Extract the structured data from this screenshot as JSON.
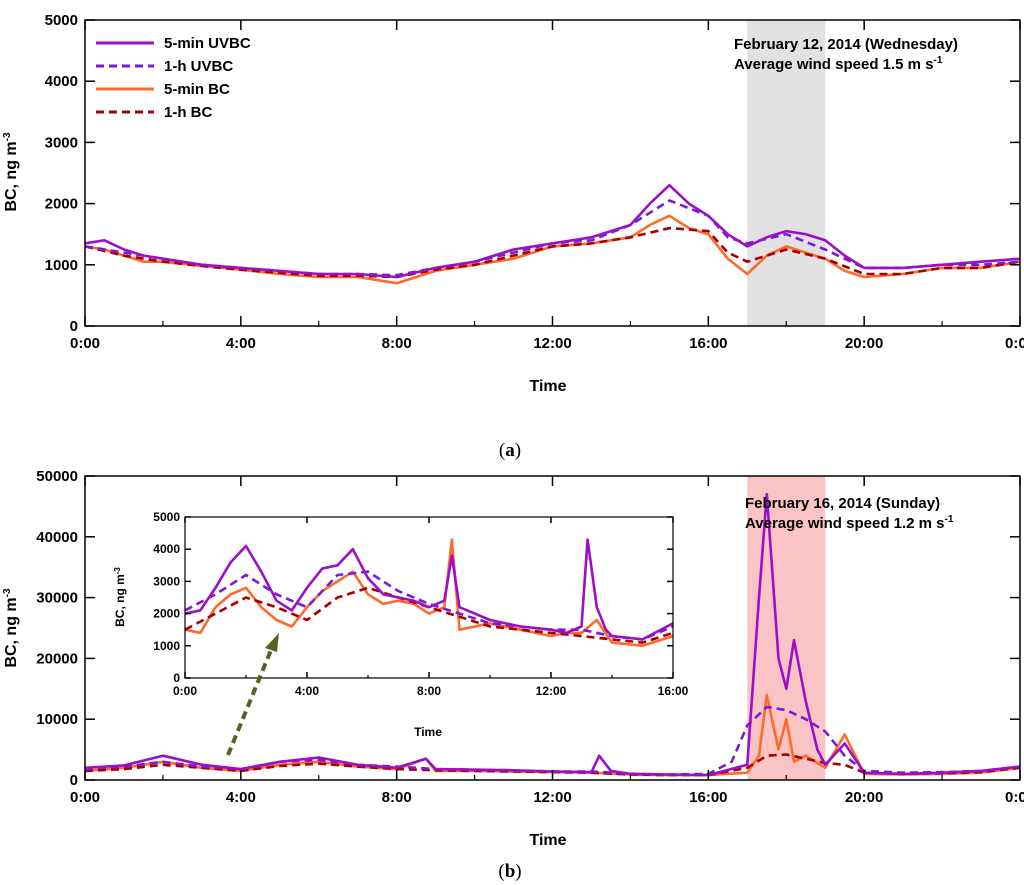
{
  "colors": {
    "uvbc_5min": "#9a10c8",
    "uvbc_1h": "#7a1ad6",
    "bc_5min": "#ff6a2a",
    "bc_1h": "#a80000",
    "highlight_a": "#e2e2e2",
    "highlight_b": "#fbc4c4",
    "arrow": "#5a5f20"
  },
  "legend": [
    "5-min UVBC",
    "1-h UVBC",
    "5-min BC",
    "1-h BC"
  ],
  "chart_data": [
    {
      "panel_label_text": "a",
      "type": "line",
      "xlabel": "Time",
      "ylabel": "BC, ng m",
      "ylabel_sup": "-3",
      "xlim_hours": [
        0,
        24
      ],
      "ylim": [
        0,
        5000
      ],
      "xticks": [
        "0:00",
        "4:00",
        "8:00",
        "12:00",
        "16:00",
        "20:00",
        "0:00"
      ],
      "yticks": [
        "0",
        "1000",
        "2000",
        "3000",
        "4000",
        "5000"
      ],
      "annotation_line1": "February 12, 2014 (Wednesday)",
      "annotation_line2": "Average wind speed 1.5 m s",
      "annotation_sup": "-1",
      "shaded_hours": [
        17,
        19
      ],
      "legend_position": "top-left",
      "series": [
        {
          "name": "5-min UVBC",
          "x": [
            0,
            0.5,
            1,
            1.5,
            2,
            3,
            4,
            5,
            6,
            7,
            8,
            9,
            10,
            11,
            12,
            13,
            14,
            14.5,
            15,
            15.5,
            16,
            16.5,
            17,
            17.5,
            18,
            18.5,
            19,
            19.5,
            20,
            21,
            22,
            23,
            24
          ],
          "y": [
            1350,
            1400,
            1250,
            1150,
            1100,
            1000,
            950,
            900,
            850,
            850,
            800,
            950,
            1050,
            1250,
            1350,
            1450,
            1650,
            2000,
            2300,
            2000,
            1800,
            1500,
            1300,
            1450,
            1550,
            1500,
            1400,
            1150,
            950,
            950,
            1000,
            1050,
            1100
          ]
        },
        {
          "name": "1-h UVBC",
          "x": [
            0,
            1,
            2,
            3,
            4,
            5,
            6,
            7,
            8,
            9,
            10,
            11,
            12,
            13,
            14,
            15,
            16,
            16.5,
            17,
            18,
            19,
            20,
            21,
            22,
            23,
            24
          ],
          "y": [
            1300,
            1200,
            1100,
            1000,
            950,
            900,
            850,
            850,
            830,
            950,
            1050,
            1200,
            1350,
            1400,
            1650,
            2050,
            1800,
            1450,
            1350,
            1500,
            1250,
            950,
            950,
            1000,
            1000,
            1050
          ]
        },
        {
          "name": "5-min BC",
          "x": [
            0,
            0.5,
            1,
            1.5,
            2,
            3,
            4,
            5,
            6,
            7,
            8,
            9,
            10,
            11,
            12,
            13,
            14,
            14.5,
            15,
            15.5,
            16,
            16.5,
            17,
            17.5,
            18,
            18.5,
            19,
            19.5,
            20,
            21,
            22,
            23,
            24
          ],
          "y": [
            1300,
            1250,
            1150,
            1050,
            1050,
            980,
            920,
            850,
            800,
            800,
            700,
            900,
            1000,
            1100,
            1300,
            1350,
            1450,
            1650,
            1800,
            1600,
            1500,
            1100,
            850,
            1150,
            1300,
            1200,
            1100,
            900,
            800,
            850,
            950,
            950,
            1050
          ]
        },
        {
          "name": "1-h BC",
          "x": [
            0,
            1,
            2,
            3,
            4,
            5,
            6,
            7,
            8,
            9,
            10,
            11,
            12,
            13,
            14,
            15,
            16,
            16.5,
            17,
            18,
            19,
            20,
            21,
            22,
            23,
            24
          ],
          "y": [
            1300,
            1150,
            1050,
            980,
            920,
            870,
            820,
            820,
            800,
            920,
            1000,
            1150,
            1300,
            1350,
            1450,
            1600,
            1550,
            1200,
            1050,
            1250,
            1100,
            850,
            850,
            950,
            950,
            1050
          ]
        }
      ]
    },
    {
      "panel_label_text": "b",
      "type": "line",
      "xlabel": "Time",
      "ylabel": "BC, ng m",
      "ylabel_sup": "-3",
      "xlim_hours": [
        0,
        24
      ],
      "ylim": [
        0,
        50000
      ],
      "xticks": [
        "0:00",
        "4:00",
        "8:00",
        "12:00",
        "16:00",
        "20:00",
        "0:00"
      ],
      "yticks": [
        "0",
        "10000",
        "20000",
        "30000",
        "40000",
        "50000"
      ],
      "annotation_line1": "February 16, 2014 (Sunday)",
      "annotation_line2": "Average wind speed 1.2 m s",
      "annotation_sup": "-1",
      "shaded_hours": [
        17,
        19
      ],
      "series": [
        {
          "name": "5-min UVBC",
          "x": [
            0,
            1,
            2,
            3,
            4,
            5,
            6,
            7,
            8,
            8.75,
            9,
            10,
            11,
            12,
            13,
            13.2,
            13.5,
            14,
            15,
            16,
            17,
            17.3,
            17.5,
            17.8,
            18,
            18.2,
            18.5,
            18.8,
            19,
            19.5,
            20,
            21,
            22,
            23,
            24
          ],
          "y": [
            2000,
            2400,
            4000,
            2500,
            1800,
            3000,
            3700,
            2500,
            2000,
            3500,
            1800,
            1700,
            1600,
            1400,
            1300,
            4000,
            1500,
            1000,
            900,
            800,
            2500,
            30000,
            47000,
            20000,
            15000,
            23000,
            13000,
            5000,
            2500,
            6000,
            1200,
            1000,
            1200,
            1500,
            2200
          ]
        },
        {
          "name": "1-h UVBC",
          "x": [
            0,
            1,
            2,
            3,
            4,
            5,
            6,
            7,
            8,
            9,
            10,
            11,
            12,
            13,
            14,
            15,
            16,
            16.6,
            17,
            17.5,
            18,
            18.5,
            19,
            19.5,
            20,
            21,
            22,
            23,
            24
          ],
          "y": [
            1800,
            2200,
            3000,
            2200,
            1800,
            3000,
            3300,
            2500,
            2200,
            1800,
            1700,
            1600,
            1400,
            1400,
            1000,
            900,
            1000,
            3000,
            9000,
            12000,
            11500,
            10000,
            8000,
            4000,
            1500,
            1200,
            1300,
            1500,
            2200
          ]
        },
        {
          "name": "5-min BC",
          "x": [
            0,
            1,
            2,
            3,
            4,
            5,
            6,
            7,
            8,
            8.75,
            9,
            10,
            11,
            12,
            13,
            14,
            15,
            16,
            17,
            17.3,
            17.5,
            17.8,
            18,
            18.2,
            18.5,
            19,
            19.5,
            20,
            21,
            22,
            23,
            24
          ],
          "y": [
            1500,
            2000,
            3000,
            2000,
            1500,
            2500,
            3000,
            2200,
            1800,
            3500,
            1500,
            1500,
            1400,
            1300,
            1200,
            900,
            800,
            800,
            1200,
            4000,
            14000,
            5000,
            10000,
            3000,
            4000,
            2000,
            7500,
            1000,
            900,
            1000,
            1200,
            2000
          ]
        },
        {
          "name": "1-h BC",
          "x": [
            0,
            1,
            2,
            3,
            4,
            5,
            6,
            7,
            8,
            9,
            10,
            11,
            12,
            13,
            14,
            15,
            16,
            17,
            17.5,
            18,
            18.5,
            19,
            19.5,
            20,
            21,
            22,
            23,
            24
          ],
          "y": [
            1500,
            1800,
            2500,
            2000,
            1500,
            2300,
            2700,
            2200,
            1800,
            1600,
            1500,
            1400,
            1300,
            1200,
            900,
            800,
            800,
            2000,
            4000,
            4200,
            3500,
            2800,
            2500,
            1200,
            1000,
            1100,
            1300,
            2000
          ]
        }
      ]
    },
    {
      "panel_label_text": "b-inset",
      "type": "line",
      "xlabel": "Time",
      "ylabel": "BC, ng m",
      "ylabel_sup": "-3",
      "xlim_hours": [
        0,
        16
      ],
      "ylim": [
        0,
        5000
      ],
      "xticks": [
        "0:00",
        "4:00",
        "8:00",
        "12:00",
        "16:00"
      ],
      "yticks": [
        "0",
        "1000",
        "2000",
        "3000",
        "4000",
        "5000"
      ],
      "series": [
        {
          "name": "5-min UVBC",
          "x": [
            0,
            0.5,
            1,
            1.5,
            2,
            2.5,
            3,
            3.5,
            4,
            4.5,
            5,
            5.5,
            6,
            6.5,
            7,
            7.5,
            8,
            8.5,
            8.75,
            9,
            10,
            11,
            12,
            12.5,
            13,
            13.2,
            13.5,
            13.8,
            14,
            15,
            16
          ],
          "y": [
            2000,
            2100,
            2800,
            3600,
            4100,
            3300,
            2400,
            2100,
            2800,
            3400,
            3500,
            4000,
            3100,
            2600,
            2500,
            2400,
            2200,
            2400,
            3800,
            2200,
            1800,
            1600,
            1500,
            1400,
            1600,
            4300,
            2200,
            1500,
            1300,
            1200,
            1700
          ]
        },
        {
          "name": "1-h UVBC",
          "x": [
            0,
            1,
            2,
            3,
            4,
            5,
            6,
            7,
            8,
            9,
            10,
            11,
            12,
            13,
            14,
            15,
            16
          ],
          "y": [
            2100,
            2600,
            3200,
            2600,
            2200,
            3200,
            3300,
            2700,
            2300,
            2000,
            1700,
            1600,
            1500,
            1500,
            1300,
            1200,
            1600
          ]
        },
        {
          "name": "5-min BC",
          "x": [
            0,
            0.5,
            1,
            1.5,
            2,
            2.5,
            3,
            3.5,
            4,
            4.5,
            5,
            5.5,
            6,
            6.5,
            7,
            7.5,
            8,
            8.5,
            8.75,
            9,
            10,
            11,
            12,
            12.5,
            13,
            13.5,
            14,
            15,
            16
          ],
          "y": [
            1500,
            1400,
            2200,
            2600,
            2800,
            2200,
            1800,
            1600,
            2200,
            2700,
            3000,
            3300,
            2600,
            2300,
            2400,
            2300,
            2000,
            2200,
            4300,
            1500,
            1700,
            1500,
            1300,
            1400,
            1400,
            1800,
            1100,
            1000,
            1300
          ]
        },
        {
          "name": "1-h BC",
          "x": [
            0,
            1,
            2,
            3,
            4,
            5,
            6,
            7,
            8,
            9,
            10,
            11,
            12,
            13,
            14,
            15,
            16
          ],
          "y": [
            1500,
            2000,
            2500,
            2200,
            1800,
            2500,
            2800,
            2500,
            2200,
            1900,
            1600,
            1500,
            1400,
            1300,
            1200,
            1100,
            1400
          ]
        }
      ]
    }
  ],
  "captions": {
    "a": "a",
    "b": "b"
  }
}
